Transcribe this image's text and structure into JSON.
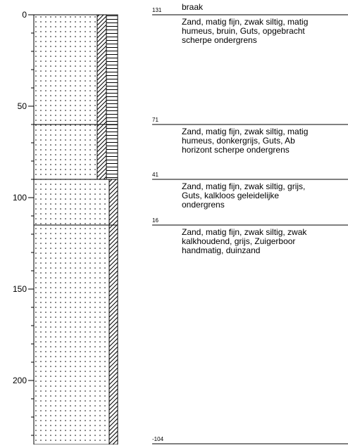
{
  "depth_axis": {
    "ylim": [
      0,
      235
    ],
    "yticks": [
      0,
      50,
      100,
      150,
      200
    ]
  },
  "land_use": "braak",
  "boundaries": [
    {
      "depth": 0,
      "elevation": 131
    },
    {
      "depth": 60,
      "elevation": 71
    },
    {
      "depth": 90,
      "elevation": 41
    },
    {
      "depth": 115,
      "elevation": 16
    },
    {
      "depth": 235,
      "elevation": -104
    }
  ],
  "layers": [
    {
      "humus": true,
      "description": [
        "Zand, matig fijn, zwak siltig, matig",
        "humeus, bruin, Guts, opgebracht",
        "scherpe ondergrens"
      ]
    },
    {
      "humus": true,
      "description": [
        "Zand, matig fijn, zwak siltig, matig",
        "humeus, donkergrijs, Guts, Ab",
        "horizont scherpe ondergrens"
      ]
    },
    {
      "humus": false,
      "description": [
        "Zand, matig fijn, zwak siltig, grijs,",
        "Guts, kalkloos geleidelijke",
        "ondergrens"
      ]
    },
    {
      "humus": false,
      "description": [
        "Zand, matig fijn, zwak siltig, zwak",
        "kalkhoudend, grijs, Zuigerboor",
        "handmatig, duinzand"
      ]
    }
  ]
}
